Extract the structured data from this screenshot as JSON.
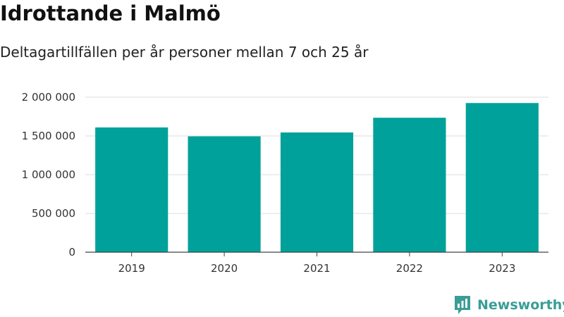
{
  "title": "Idrottande i Malmö",
  "subtitle": "Deltagartillfällen per år personer mellan 7 och 25 år",
  "brand": {
    "name": "Newsworthy",
    "icon": "newsworthy-logo-icon"
  },
  "colors": {
    "bar": "#00a19a",
    "brand": "#3a9d96",
    "grid": "#dddddd",
    "axis": "#444444"
  },
  "chart_data": {
    "type": "bar",
    "title": "Idrottande i Malmö",
    "subtitle": "Deltagartillfällen per år personer mellan 7 och 25 år",
    "xlabel": "",
    "ylabel": "",
    "categories": [
      "2019",
      "2020",
      "2021",
      "2022",
      "2023"
    ],
    "values": [
      1610000,
      1495000,
      1545000,
      1735000,
      1925000
    ],
    "ylim": [
      0,
      2000000
    ],
    "yticks": [
      0,
      500000,
      1000000,
      1500000,
      2000000
    ],
    "ytick_labels": [
      "0",
      "500 000",
      "1 000 000",
      "1 500 000",
      "2 000 000"
    ],
    "grid": true,
    "legend": "none"
  }
}
